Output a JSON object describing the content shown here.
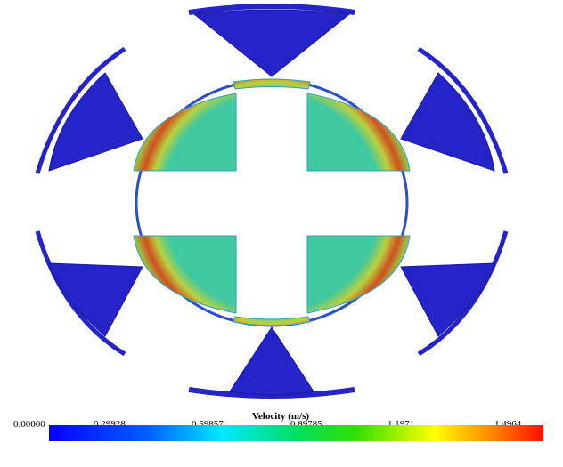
{
  "colorbar": {
    "title": "Velocity (m/s)",
    "ticks": [
      "0.00000",
      "0.29928",
      "0.59857",
      "0.89785",
      "1.1971",
      "1.4964"
    ]
  }
}
